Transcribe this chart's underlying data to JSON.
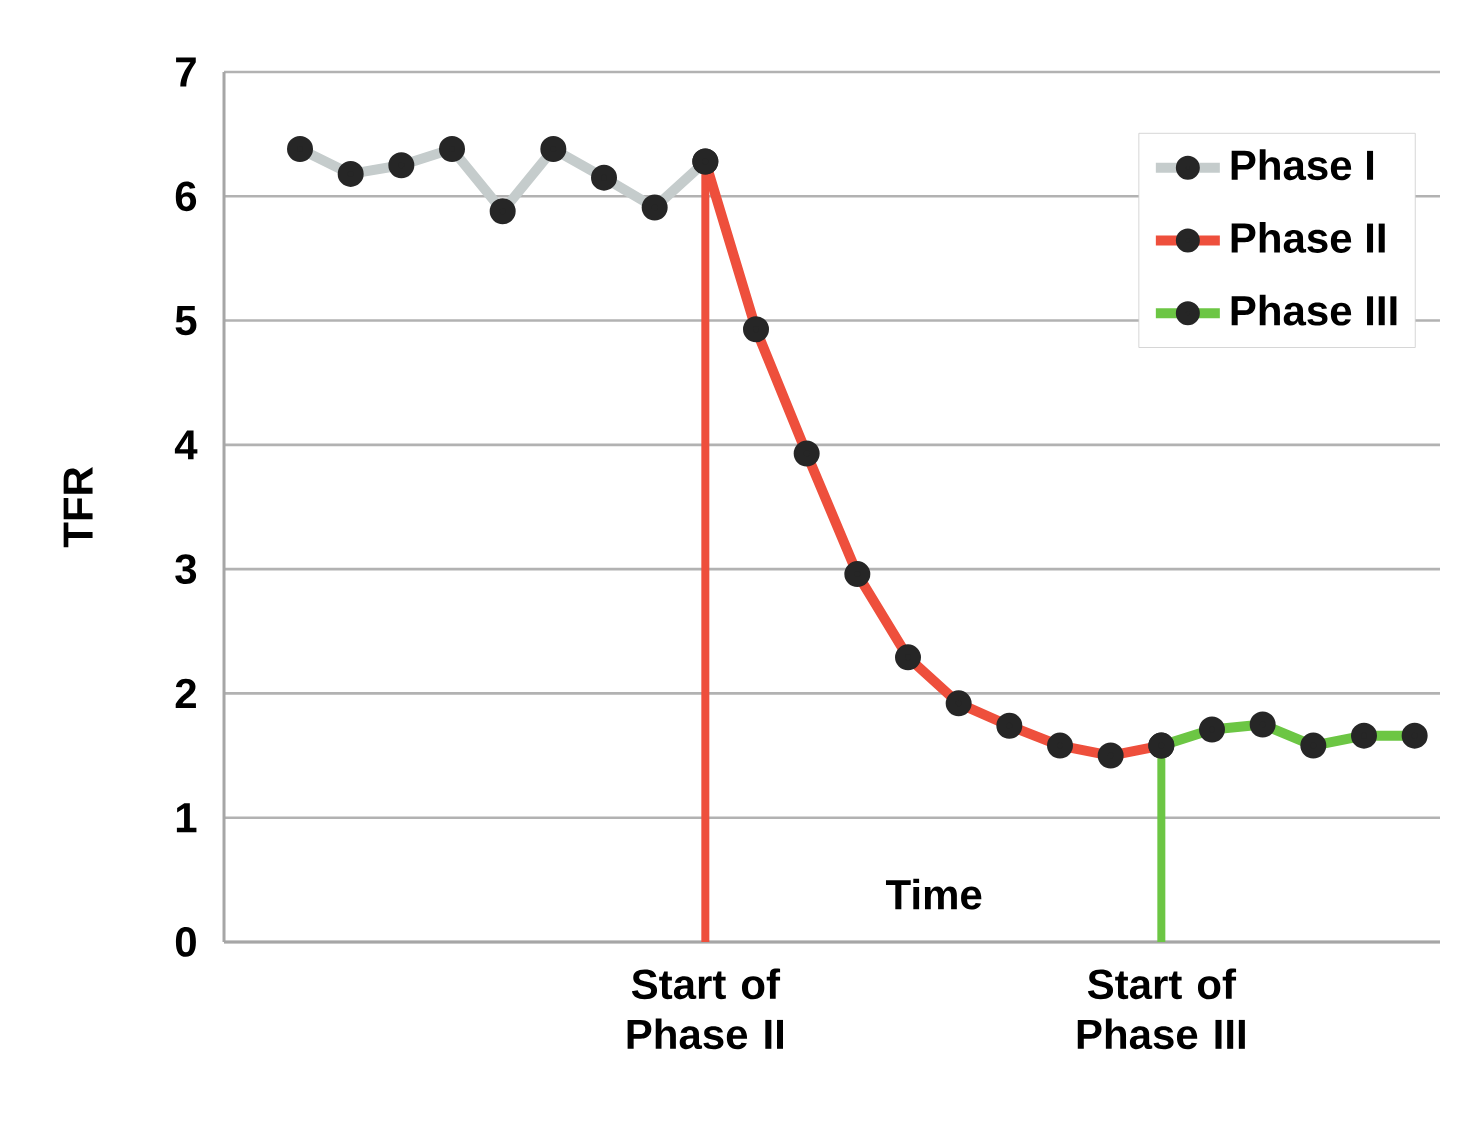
{
  "chart_data": {
    "type": "line",
    "ylabel": "TFR",
    "xlabel": "Time",
    "categories": [
      null,
      null,
      null,
      null,
      null,
      null,
      null,
      null,
      null,
      null,
      null,
      null,
      null,
      null,
      null,
      null,
      null,
      null,
      null,
      null,
      null,
      null,
      null,
      null
    ],
    "series": [
      {
        "name": "Phase I",
        "color": "#c5cccc",
        "values": [
          null,
          6.38,
          6.18,
          6.25,
          6.38,
          5.88,
          6.38,
          6.15,
          5.91,
          6.28,
          null,
          null,
          null,
          null,
          null,
          null,
          null,
          null,
          null,
          null,
          null,
          null,
          null,
          null
        ]
      },
      {
        "name": "Phase II",
        "color": "#ee4f3c",
        "values": [
          null,
          null,
          null,
          null,
          null,
          null,
          null,
          null,
          null,
          6.28,
          4.93,
          3.93,
          2.96,
          2.29,
          1.92,
          1.74,
          1.58,
          1.5,
          1.58,
          null,
          null,
          null,
          null,
          null
        ]
      },
      {
        "name": "Phase III",
        "color": "#6cc644",
        "values": [
          null,
          null,
          null,
          null,
          null,
          null,
          null,
          null,
          null,
          null,
          null,
          null,
          null,
          null,
          null,
          null,
          null,
          null,
          1.58,
          1.71,
          1.75,
          1.58,
          1.66,
          1.66
        ]
      }
    ],
    "ylim": [
      0,
      7
    ],
    "yticks": [
      0,
      1,
      2,
      3,
      4,
      5,
      6,
      7
    ],
    "grid": "y",
    "legend": "top right",
    "marker": "circle",
    "annotations": [
      "Start of Phase II",
      "Start of Phase III"
    ]
  }
}
